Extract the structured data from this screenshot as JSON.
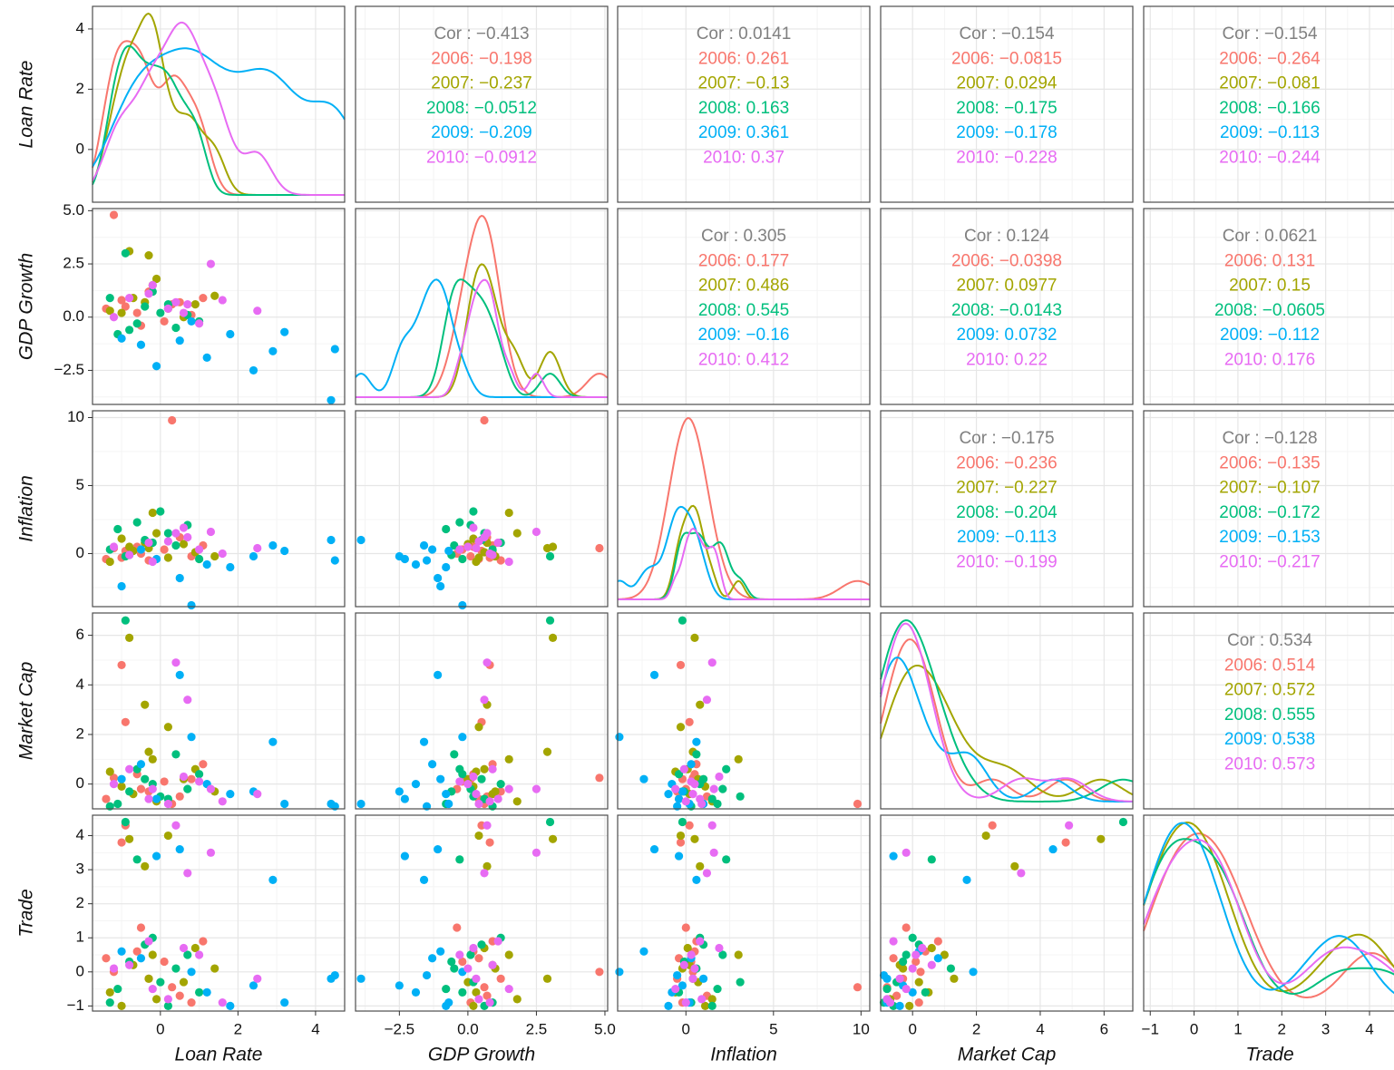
{
  "chart_data": {
    "type": "scatter-matrix",
    "grid": true,
    "variables": [
      {
        "name": "Loan Rate",
        "lim": [
          -1.75,
          4.75
        ],
        "ticks": [
          0,
          2,
          4
        ]
      },
      {
        "name": "GDP Growth",
        "lim": [
          -4.1,
          5.1
        ],
        "ticks": [
          {
            "value": -2.5,
            "label": "−2.5"
          },
          {
            "value": 0,
            "label": "0.0"
          },
          {
            "value": 2.5,
            "label": "2.5"
          },
          {
            "value": 5,
            "label": "5.0"
          }
        ]
      },
      {
        "name": "Inflation",
        "lim": [
          -3.9,
          10.5
        ],
        "ticks": [
          0,
          5,
          10
        ]
      },
      {
        "name": "Market Cap",
        "lim": [
          -1.0,
          6.9
        ],
        "ticks": [
          0,
          2,
          4,
          6
        ]
      },
      {
        "name": "Trade",
        "lim": [
          -1.15,
          4.6
        ],
        "ticks": [
          {
            "value": -1,
            "label": "−1"
          },
          0,
          1,
          2,
          3,
          4
        ]
      }
    ],
    "series": [
      {
        "name": "2006",
        "color": "#F8766D",
        "values": [
          [
            0.3,
            0.6,
            9.8,
            -0.8,
            -0.45
          ],
          [
            -1.2,
            4.8,
            0.4,
            0.25,
            0.0
          ],
          [
            -1.0,
            0.8,
            -0.3,
            4.8,
            3.8
          ],
          [
            -0.9,
            0.5,
            0.2,
            2.5,
            4.3
          ],
          [
            -0.6,
            0.2,
            0.5,
            0.4,
            0.6
          ],
          [
            -0.3,
            1.2,
            -0.5,
            -0.3,
            -0.2
          ],
          [
            0.1,
            -0.2,
            0.3,
            0.1,
            0.3
          ],
          [
            0.5,
            0.7,
            1.2,
            -0.5,
            -0.7
          ],
          [
            -1.4,
            0.4,
            -0.4,
            -0.6,
            0.4
          ],
          [
            0.8,
            0.1,
            -0.2,
            0.2,
            -0.9
          ],
          [
            1.1,
            0.9,
            0.6,
            0.8,
            0.9
          ],
          [
            -0.5,
            -0.4,
            0.0,
            -0.2,
            1.3
          ]
        ]
      },
      {
        "name": "2007",
        "color": "#A3A500",
        "values": [
          [
            -0.8,
            3.1,
            0.5,
            5.9,
            3.9
          ],
          [
            -0.4,
            0.7,
            0.8,
            3.2,
            3.1
          ],
          [
            -0.2,
            1.5,
            3.0,
            1.0,
            0.5
          ],
          [
            -1.3,
            0.3,
            -0.6,
            0.5,
            -0.6
          ],
          [
            -0.7,
            0.9,
            0.2,
            -0.4,
            0.2
          ],
          [
            0.2,
            0.4,
            -0.3,
            2.3,
            4.0
          ],
          [
            0.6,
            0.0,
            0.7,
            0.2,
            -0.3
          ],
          [
            -0.1,
            1.8,
            1.5,
            -0.7,
            -0.8
          ],
          [
            0.9,
            0.6,
            0.1,
            0.6,
            0.7
          ],
          [
            -1.0,
            0.2,
            1.1,
            -0.1,
            -1.0
          ],
          [
            1.4,
            1.0,
            -0.2,
            -0.3,
            0.1
          ],
          [
            -0.3,
            2.9,
            0.4,
            1.3,
            -0.2
          ]
        ]
      },
      {
        "name": "2008",
        "color": "#00BF7D",
        "values": [
          [
            -0.9,
            3.0,
            -0.2,
            6.6,
            4.4
          ],
          [
            -0.6,
            -0.3,
            2.3,
            0.6,
            3.3
          ],
          [
            -1.1,
            -0.8,
            1.8,
            -0.8,
            -0.5
          ],
          [
            -0.4,
            0.5,
            1.0,
            0.2,
            0.8
          ],
          [
            0.0,
            0.2,
            3.1,
            -0.5,
            -0.3
          ],
          [
            0.4,
            -0.5,
            0.6,
            1.2,
            0.1
          ],
          [
            -1.3,
            0.9,
            0.3,
            -0.9,
            -0.9
          ],
          [
            0.7,
            0.1,
            2.1,
            -0.2,
            0.5
          ],
          [
            1.0,
            -0.2,
            -0.4,
            0.4,
            -0.6
          ],
          [
            -0.2,
            1.2,
            0.8,
            0.0,
            1.0
          ],
          [
            0.2,
            0.6,
            1.5,
            -0.6,
            -1.0
          ],
          [
            -0.8,
            -0.6,
            -0.1,
            -0.3,
            0.3
          ]
        ]
      },
      {
        "name": "2009",
        "color": "#00B0F6",
        "values": [
          [
            4.5,
            -1.5,
            -0.5,
            -0.9,
            -0.1
          ],
          [
            4.4,
            -3.9,
            1.0,
            -0.8,
            -0.2
          ],
          [
            2.9,
            -1.6,
            0.6,
            1.7,
            2.7
          ],
          [
            0.5,
            -1.1,
            -1.8,
            4.4,
            3.6
          ],
          [
            -0.1,
            -2.3,
            -0.4,
            -0.6,
            3.4
          ],
          [
            1.2,
            -1.9,
            -0.8,
            0.0,
            -0.6
          ],
          [
            1.8,
            -0.8,
            -1.0,
            -0.4,
            -1.0
          ],
          [
            -0.5,
            -1.3,
            0.3,
            0.8,
            0.4
          ],
          [
            2.4,
            -2.5,
            -0.2,
            -0.3,
            -0.4
          ],
          [
            0.8,
            -0.2,
            -3.8,
            1.9,
            0.0
          ],
          [
            3.2,
            -0.7,
            0.2,
            -0.8,
            -0.9
          ],
          [
            -1.0,
            -1.0,
            -2.4,
            0.2,
            0.6
          ]
        ]
      },
      {
        "name": "2010",
        "color": "#E76BF3",
        "values": [
          [
            0.4,
            0.7,
            1.5,
            4.9,
            4.3
          ],
          [
            0.7,
            0.6,
            1.2,
            3.4,
            2.9
          ],
          [
            -0.3,
            1.1,
            0.8,
            -0.6,
            0.9
          ],
          [
            1.3,
            2.5,
            1.6,
            -0.2,
            3.5
          ],
          [
            2.5,
            0.3,
            0.4,
            -0.4,
            -0.2
          ],
          [
            -0.8,
            0.9,
            -0.1,
            0.6,
            0.2
          ],
          [
            0.2,
            0.4,
            0.9,
            -0.8,
            -0.8
          ],
          [
            1.0,
            -0.3,
            0.3,
            0.1,
            0.5
          ],
          [
            -0.2,
            1.5,
            -0.6,
            -0.2,
            -0.5
          ],
          [
            0.6,
            0.2,
            1.9,
            0.3,
            0.7
          ],
          [
            1.6,
            0.8,
            0.0,
            -0.7,
            -0.9
          ],
          [
            -1.2,
            0.0,
            0.5,
            0.0,
            0.1
          ]
        ]
      }
    ],
    "cor_color": "#808080",
    "correlations": [
      [
        "Cor : −0.413",
        "2006: −0.198",
        "2007: −0.237",
        "2008: −0.0512",
        "2009: −0.209",
        "2010: −0.0912"
      ],
      [
        "Cor : 0.0141",
        "2006: 0.261",
        "2007: −0.13",
        "2008: 0.163",
        "2009: 0.361",
        "2010: 0.37"
      ],
      [
        "Cor : −0.154",
        "2006: −0.0815",
        "2007: 0.0294",
        "2008: −0.175",
        "2009: −0.178",
        "2010: −0.228"
      ],
      [
        "Cor : −0.154",
        "2006: −0.264",
        "2007: −0.081",
        "2008: −0.166",
        "2009: −0.113",
        "2010: −0.244"
      ],
      [
        "Cor : 0.305",
        "2006: 0.177",
        "2007: 0.486",
        "2008: 0.545",
        "2009: −0.16",
        "2010: 0.412"
      ],
      [
        "Cor : 0.124",
        "2006: −0.0398",
        "2007: 0.0977",
        "2008: −0.0143",
        "2009: 0.0732",
        "2010: 0.22"
      ],
      [
        "Cor : 0.0621",
        "2006: 0.131",
        "2007: 0.15",
        "2008: −0.0605",
        "2009: −0.112",
        "2010: 0.176"
      ],
      [
        "Cor : −0.175",
        "2006: −0.236",
        "2007: −0.227",
        "2008: −0.204",
        "2009: −0.113",
        "2010: −0.199"
      ],
      [
        "Cor : −0.128",
        "2006: −0.135",
        "2007: −0.107",
        "2008: −0.172",
        "2009: −0.153",
        "2010: −0.217"
      ],
      [
        "Cor : 0.534",
        "2006: 0.514",
        "2007: 0.572",
        "2008: 0.555",
        "2009: 0.538",
        "2010: 0.573"
      ]
    ]
  }
}
